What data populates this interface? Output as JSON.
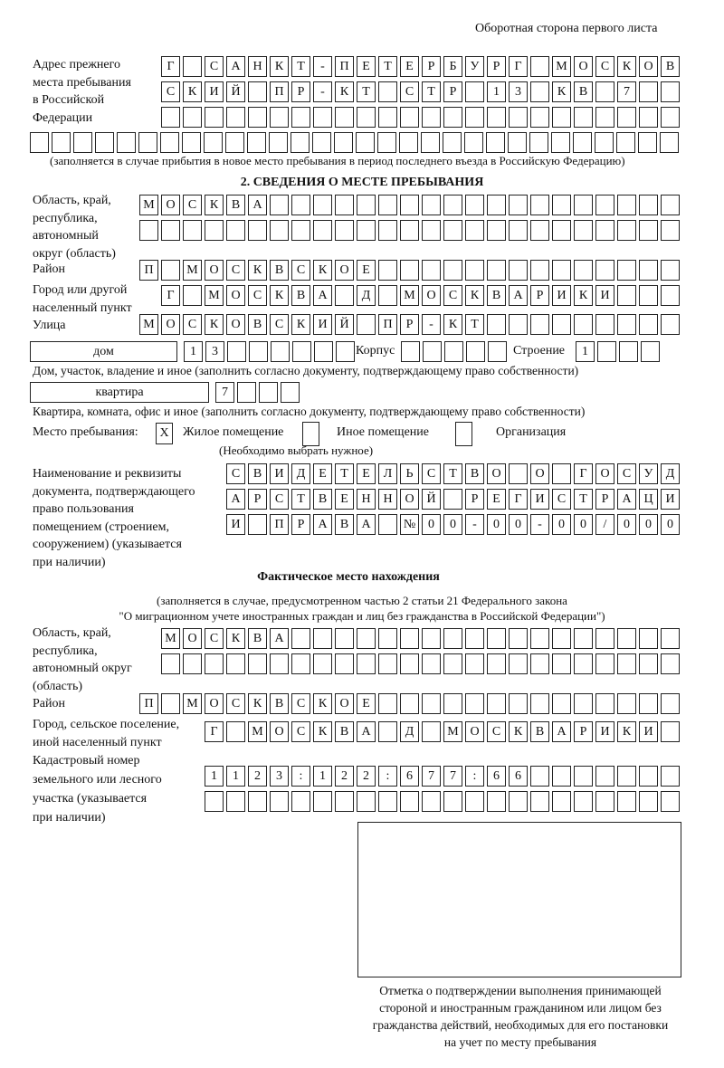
{
  "header_note": "Оборотная сторона первого листа",
  "prev_address": {
    "label_lines": [
      "Адрес прежнего",
      "места пребывания",
      "в Российской",
      "Федерации"
    ],
    "rows": [
      "Г САНКТ-ПЕТЕРБУРГ МОСКОВ",
      "СКИЙ ПР-КТ СТР 13 КВ 7  ",
      "                        ",
      "                              "
    ],
    "note": "(заполняется в случае прибытия в новое место пребывания в период последнего въезда в Российскую Федерацию)"
  },
  "section2": {
    "title": "2. СВЕДЕНИЯ О МЕСТЕ ПРЕБЫВАНИЯ",
    "region": {
      "label_lines": [
        "Область, край,",
        "республика,",
        "автономный",
        "округ (область)"
      ],
      "rows": [
        "МОСКВА                   ",
        "                         "
      ]
    },
    "district": {
      "label": "Район",
      "cells": "П МОСКВСКОЕ              "
    },
    "city": {
      "label_lines": [
        "Город или другой",
        "населенный пункт"
      ],
      "cells": "Г МОСКВА Д МОСКВАРИКИ   "
    },
    "street": {
      "label": "Улица",
      "cells": "МОСКОВСКИЙ ПР-КТ         "
    },
    "house": {
      "type_value": "дом",
      "number_cells": "13      ",
      "korpus_label": "Корпус",
      "korpus_cells": "     ",
      "stroenie_label": "Строение",
      "stroenie_cells": "1   ",
      "note": "Дом, участок, владение и иное (заполнить согласно документу, подтверждающему право собственности)"
    },
    "apartment": {
      "type_value": "квартира",
      "cells": "7   ",
      "note": "Квартира, комната, офис и иное (заполнить согласно документу, подтверждающему право собственности)"
    },
    "stay_place": {
      "label": "Место пребывания:",
      "options": [
        {
          "label": "Жилое помещение",
          "mark": "X",
          "checked": true
        },
        {
          "label": "Иное помещение",
          "mark": "",
          "checked": false
        },
        {
          "label": "Организация",
          "mark": "",
          "checked": false
        }
      ],
      "hint": "(Необходимо выбрать нужное)"
    },
    "document": {
      "label_lines": [
        "Наименование и реквизиты",
        "документа, подтверждающего",
        "право пользования",
        "помещением (строением,",
        "сооружением) (указывается",
        "при наличии)"
      ],
      "rows": [
        "СВИДЕТЕЛЬСТВО О ГОСУД",
        "АРСТВЕННОЙ РЕГИСТРАЦИ",
        "И ПРАВА №00-00-00/000"
      ]
    }
  },
  "actual": {
    "title": "Фактическое место нахождения",
    "note_lines": [
      "(заполняется в случае, предусмотренном частью 2 статьи 21 Федерального закона",
      "\"О миграционном учете иностранных граждан и лиц без гражданства в Российской Федерации\")"
    ],
    "region": {
      "label_lines": [
        "Область, край,",
        "республика,",
        "автономный округ",
        "(область)"
      ],
      "rows": [
        "МОСКВА                  ",
        "                        "
      ]
    },
    "district": {
      "label": "Район",
      "cells": "П МОСКВСКОЕ              "
    },
    "city": {
      "label_lines": [
        "Город, сельское поселение,",
        "иной населенный пункт"
      ],
      "cells": "Г МОСКВА Д МОСКВАРИКИ "
    },
    "cadastral": {
      "label_lines": [
        "Кадастровый номер",
        "земельного или лесного",
        "участка (указывается",
        "при наличии)"
      ],
      "rows": [
        "1123:122:677:66       ",
        "                      "
      ]
    }
  },
  "stamp": {
    "caption_lines": [
      "Отметка о подтверждении выполнения принимающей",
      "стороной и иностранным гражданином или лицом без",
      "гражданства действий, необходимых для его постановки",
      "на учет по месту пребывания"
    ]
  }
}
